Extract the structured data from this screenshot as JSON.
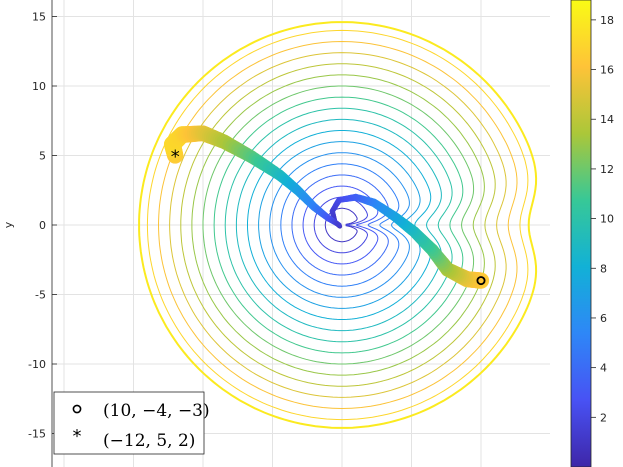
{
  "chart_data": {
    "type": "contour",
    "title": "",
    "xlabel": "",
    "ylabel": "y",
    "xlim": [
      -20,
      20
    ],
    "ylim": [
      -16.5,
      16.5
    ],
    "y_ticks": [
      15,
      10,
      5,
      0,
      -5,
      -10,
      -15
    ],
    "y_tick_labels": [
      "15",
      "10",
      "5",
      "0",
      "-5",
      "-10",
      "-15"
    ],
    "grid": true,
    "contours": {
      "center": [
        0,
        0
      ],
      "levels": [
        1,
        2,
        3,
        4,
        5,
        6,
        7,
        8,
        9,
        10,
        11,
        12,
        13,
        14,
        15,
        16,
        17,
        18
      ],
      "radii": [
        1.2,
        2.0,
        2.8,
        3.6,
        4.4,
        5.2,
        6.0,
        6.8,
        7.6,
        8.4,
        9.2,
        10.0,
        10.8,
        11.6,
        12.4,
        13.2,
        14.0,
        14.6
      ],
      "notch_side": "right"
    },
    "trajectories": [
      {
        "name": "(10, -4, -3)",
        "marker": "circle",
        "start": [
          10,
          -4
        ],
        "path": [
          [
            10,
            -4
          ],
          [
            9,
            -3.9
          ],
          [
            7.6,
            -3.2
          ],
          [
            6.5,
            -1.8
          ],
          [
            5.2,
            -0.5
          ],
          [
            3.8,
            0.6
          ],
          [
            2.3,
            1.6
          ],
          [
            1,
            2
          ],
          [
            -0.2,
            1.8
          ],
          [
            -0.7,
            1
          ],
          [
            -0.5,
            0.2
          ],
          [
            -0.15,
            -0.1
          ]
        ],
        "values": [
          16.5,
          15.8,
          13.6,
          11.2,
          9.3,
          7.4,
          5.6,
          3.6,
          2.4,
          1.6,
          1.1,
          0.6
        ]
      },
      {
        "name": "(-12, 5, 2)",
        "marker": "asterisk",
        "start": [
          -12,
          5
        ],
        "path": [
          [
            -12,
            5
          ],
          [
            -12.2,
            5.8
          ],
          [
            -11.5,
            6.5
          ],
          [
            -10,
            6.6
          ],
          [
            -8.5,
            6
          ],
          [
            -6.5,
            4.9
          ],
          [
            -4.5,
            3.6
          ],
          [
            -3.2,
            2.5
          ],
          [
            -2,
            1.3
          ],
          [
            -1,
            0.5
          ],
          [
            -0.2,
            0
          ]
        ],
        "values": [
          16.4,
          17.2,
          16.9,
          15.4,
          13.8,
          11.6,
          9.2,
          7.2,
          5.2,
          3.2,
          1.3
        ]
      }
    ],
    "colorbar": {
      "range": [
        0,
        18.8
      ],
      "ticks": [
        2,
        4,
        6,
        8,
        10,
        12,
        14,
        16,
        18
      ],
      "tick_labels": [
        "2",
        "4",
        "6",
        "8",
        "10",
        "12",
        "14",
        "16",
        "18"
      ],
      "colormap": "parula"
    },
    "legend": {
      "location": "bottom-left",
      "entries": [
        {
          "marker": "circle",
          "label": "(10, −4, −3)"
        },
        {
          "marker": "asterisk",
          "label": "(−12, 5, 2)"
        }
      ]
    }
  }
}
